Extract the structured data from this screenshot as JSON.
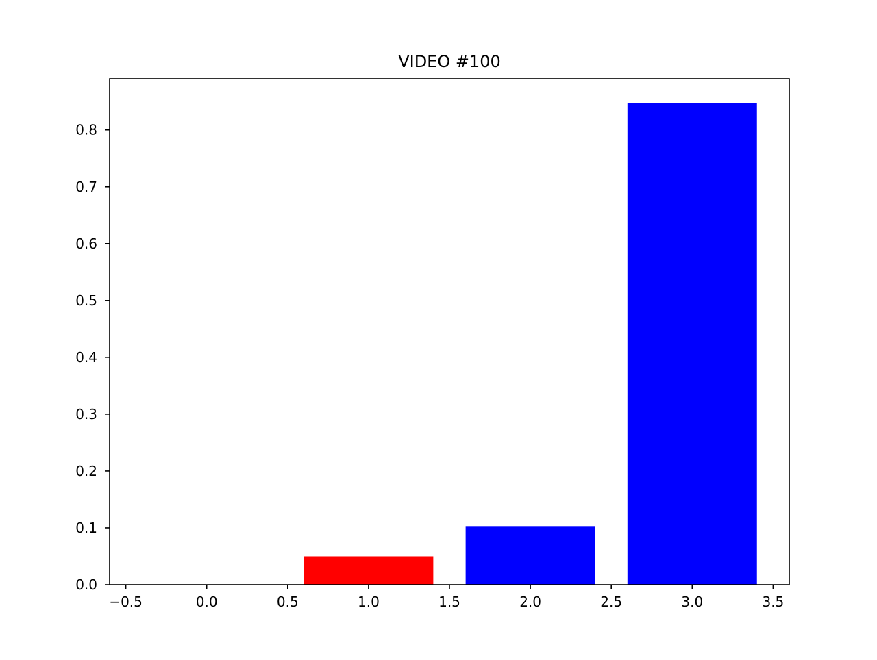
{
  "chart_data": {
    "type": "bar",
    "title": "VIDEO #100",
    "xlabel": "",
    "ylabel": "",
    "x": [
      0,
      1,
      2,
      3
    ],
    "values": [
      0.0,
      0.05,
      0.102,
      0.847
    ],
    "bar_colors": [
      "#0000ff",
      "#ff0000",
      "#0000ff",
      "#0000ff"
    ],
    "bar_width": 0.8,
    "xlim": [
      -0.6,
      3.6
    ],
    "ylim": [
      0,
      0.89
    ],
    "xticks": [
      -0.5,
      0.0,
      0.5,
      1.0,
      1.5,
      2.0,
      2.5,
      3.0,
      3.5
    ],
    "xtick_labels": [
      "−0.5",
      "0.0",
      "0.5",
      "1.0",
      "1.5",
      "2.0",
      "2.5",
      "3.0",
      "3.5"
    ],
    "yticks": [
      0.0,
      0.1,
      0.2,
      0.3,
      0.4,
      0.5,
      0.6,
      0.7,
      0.8
    ],
    "ytick_labels": [
      "0.0",
      "0.1",
      "0.2",
      "0.3",
      "0.4",
      "0.5",
      "0.6",
      "0.7",
      "0.8"
    ],
    "grid": false,
    "legend": "none"
  }
}
